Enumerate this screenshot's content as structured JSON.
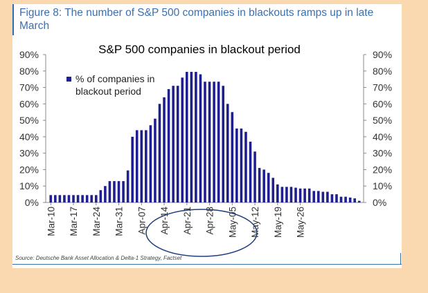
{
  "figure": {
    "title": "Figure 8: The number of S&P 500 companies in blackouts ramps up in late March",
    "source": "Source: Deutsche Bank Asset Allocation & Delta-1 Strategy, Factset"
  },
  "chart_data": {
    "type": "bar",
    "title": "S&P 500 companies in blackout period",
    "legend": "% of companies in blackout period",
    "legend_lines": [
      "% of companies in",
      "blackout period"
    ],
    "legend_position": "top-left",
    "series_color": "#1F1F8F",
    "ylim": [
      0,
      90
    ],
    "yticks": [
      "0%",
      "10%",
      "20%",
      "30%",
      "40%",
      "50%",
      "60%",
      "70%",
      "80%",
      "90%"
    ],
    "xticks": [
      {
        "label": "Mar-10",
        "index": 0
      },
      {
        "label": "Mar-17",
        "index": 5
      },
      {
        "label": "Mar-24",
        "index": 10
      },
      {
        "label": "Mar-31",
        "index": 15
      },
      {
        "label": "Apr-07",
        "index": 20
      },
      {
        "label": "Apr-14",
        "index": 25
      },
      {
        "label": "Apr-21",
        "index": 30
      },
      {
        "label": "Apr-28",
        "index": 35
      },
      {
        "label": "May-05",
        "index": 40
      },
      {
        "label": "May-12",
        "index": 45
      },
      {
        "label": "May-19",
        "index": 50
      },
      {
        "label": "May-26",
        "index": 55
      }
    ],
    "values": [
      4.5,
      4.5,
      4.5,
      4.5,
      4.5,
      4.5,
      4.5,
      4.5,
      4.5,
      4.5,
      4.5,
      7.5,
      10,
      13,
      13,
      13,
      13,
      19.5,
      40,
      44,
      44,
      44,
      47,
      51,
      60,
      64,
      69,
      71,
      71,
      76,
      79.5,
      79.5,
      79.5,
      78,
      73.5,
      73.5,
      73.5,
      73.5,
      71,
      60,
      55,
      45,
      45,
      43,
      37,
      31,
      21,
      20,
      18,
      15,
      11,
      9.5,
      9.5,
      9.5,
      9,
      8.5,
      8.5,
      8.5,
      7,
      7,
      6.5,
      6.5,
      5,
      5,
      3.5,
      3.5,
      3,
      2.5,
      1
    ],
    "highlight": {
      "shape": "ellipse",
      "from": "Apr-07",
      "to": "Apr-28",
      "color": "#1F3C7A"
    }
  }
}
